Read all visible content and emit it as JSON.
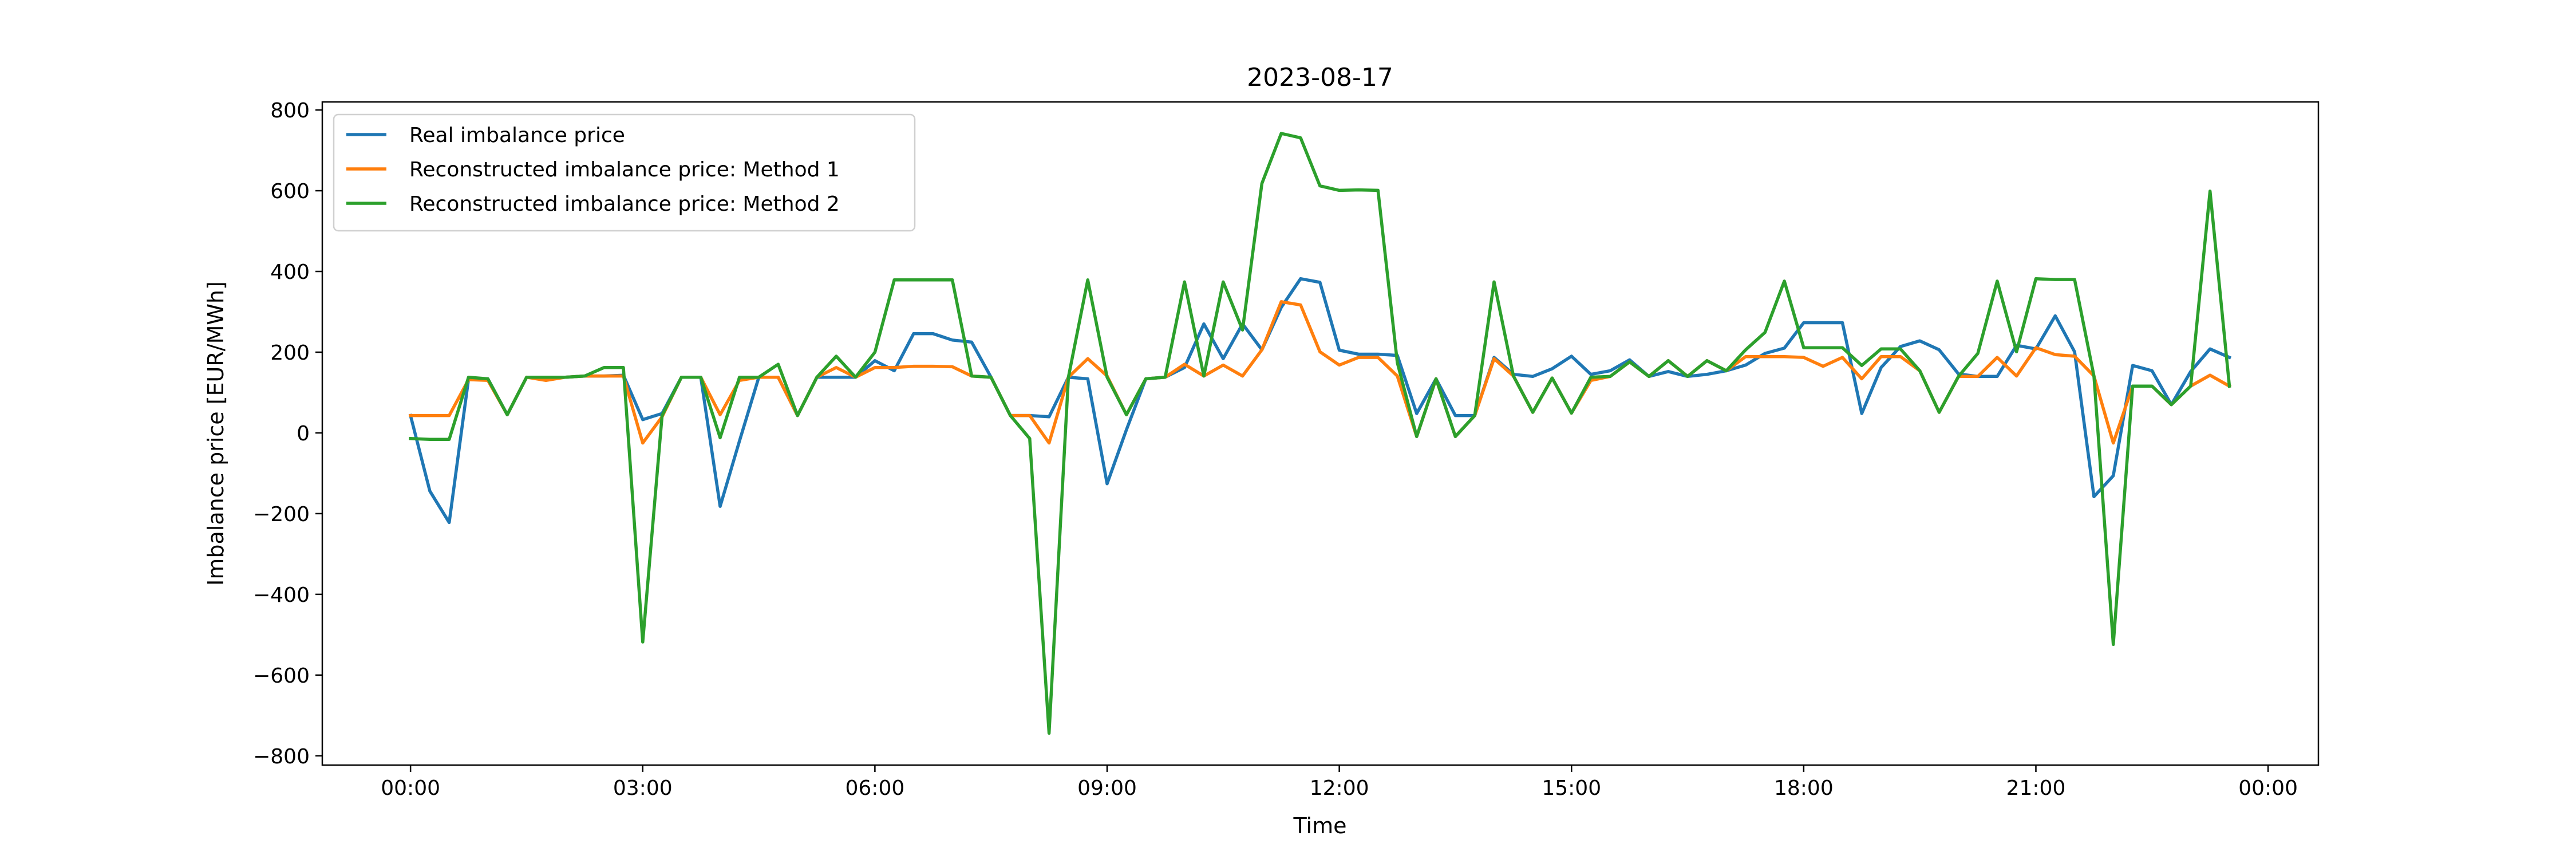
{
  "chart_data": {
    "type": "line",
    "title": "2023-08-17",
    "xlabel": "Time",
    "ylabel": "Imbalance price [EUR/MWh]",
    "x_unit": "hours since 00:00, 15-minute resolution",
    "x": [
      "00:00",
      "00:15",
      "00:30",
      "00:45",
      "01:00",
      "01:15",
      "01:30",
      "01:45",
      "02:00",
      "02:15",
      "02:30",
      "02:45",
      "03:00",
      "03:15",
      "03:30",
      "03:45",
      "04:00",
      "04:15",
      "04:30",
      "04:45",
      "05:00",
      "05:15",
      "05:30",
      "05:45",
      "06:00",
      "06:15",
      "06:30",
      "06:45",
      "07:00",
      "07:15",
      "07:30",
      "07:45",
      "08:00",
      "08:15",
      "08:30",
      "08:45",
      "09:00",
      "09:15",
      "09:30",
      "09:45",
      "10:00",
      "10:15",
      "10:30",
      "10:45",
      "11:00",
      "11:15",
      "11:30",
      "11:45",
      "12:00",
      "12:15",
      "12:30",
      "12:45",
      "13:00",
      "13:15",
      "13:30",
      "13:45",
      "14:00",
      "14:15",
      "14:30",
      "14:45",
      "15:00",
      "15:15",
      "15:30",
      "15:45",
      "16:00",
      "16:15",
      "16:30",
      "16:45",
      "17:00",
      "17:15",
      "17:30",
      "17:45",
      "18:00",
      "18:15",
      "18:30",
      "18:45",
      "19:00",
      "19:15",
      "19:30",
      "19:45",
      "20:00",
      "20:15",
      "20:30",
      "20:45",
      "21:00",
      "21:15",
      "21:30",
      "21:45",
      "22:00",
      "22:15",
      "22:30",
      "22:45",
      "23:00",
      "23:15",
      "23:30"
    ],
    "xlim": [
      -1.14,
      24.65
    ],
    "ylim": [
      -823,
      820
    ],
    "x_ticks": [
      {
        "hour": 0,
        "label": "00:00"
      },
      {
        "hour": 3,
        "label": "03:00"
      },
      {
        "hour": 6,
        "label": "06:00"
      },
      {
        "hour": 9,
        "label": "09:00"
      },
      {
        "hour": 12,
        "label": "12:00"
      },
      {
        "hour": 15,
        "label": "15:00"
      },
      {
        "hour": 18,
        "label": "18:00"
      },
      {
        "hour": 21,
        "label": "21:00"
      },
      {
        "hour": 24,
        "label": "00:00"
      }
    ],
    "y_ticks": [
      {
        "value": 800,
        "label": "800"
      },
      {
        "value": 600,
        "label": "600"
      },
      {
        "value": 400,
        "label": "400"
      },
      {
        "value": 200,
        "label": "200"
      },
      {
        "value": 0,
        "label": "0"
      },
      {
        "value": -200,
        "label": "−200"
      },
      {
        "value": -400,
        "label": "−400"
      },
      {
        "value": -600,
        "label": "−600"
      },
      {
        "value": -800,
        "label": "−800"
      }
    ],
    "grid": false,
    "legend_position": "top-left",
    "series": [
      {
        "name": "Real imbalance price",
        "color": "#1f77b4",
        "values": [
          43,
          -144,
          -222,
          134,
          134,
          45,
          138,
          138,
          138,
          141,
          141,
          143,
          33,
          48,
          138,
          138,
          -182,
          -20,
          138,
          138,
          43,
          138,
          138,
          138,
          179,
          154,
          246,
          246,
          230,
          225,
          138,
          43,
          43,
          40,
          138,
          134,
          -126,
          8,
          134,
          138,
          162,
          270,
          184,
          270,
          206,
          311,
          382,
          373,
          205,
          195,
          195,
          192,
          48,
          134,
          43,
          43,
          187,
          145,
          140,
          159,
          190,
          145,
          154,
          181,
          140,
          152,
          140,
          145,
          154,
          168,
          197,
          210,
          273,
          273,
          273,
          48,
          162,
          214,
          228,
          206,
          146,
          140,
          140,
          217,
          208,
          290,
          201,
          -158,
          -106,
          167,
          154,
          70,
          152,
          208,
          187
        ]
      },
      {
        "name": "Reconstructed imbalance price: Method 1",
        "color": "#ff7f0e",
        "values": [
          43,
          43,
          43,
          132,
          130,
          45,
          138,
          130,
          138,
          141,
          141,
          141,
          -25,
          40,
          138,
          138,
          45,
          130,
          138,
          138,
          43,
          138,
          162,
          138,
          162,
          162,
          165,
          165,
          164,
          141,
          138,
          43,
          43,
          -25,
          138,
          184,
          141,
          45,
          134,
          138,
          170,
          141,
          168,
          141,
          206,
          325,
          317,
          201,
          168,
          187,
          187,
          141,
          -9,
          134,
          -9,
          43,
          184,
          141,
          51,
          136,
          49,
          130,
          140,
          176,
          140,
          179,
          140,
          179,
          154,
          189,
          189,
          189,
          187,
          165,
          187,
          134,
          189,
          189,
          154,
          51,
          140,
          140,
          187,
          141,
          211,
          194,
          190,
          141,
          -25,
          116,
          116,
          70,
          116,
          143,
          116
        ]
      },
      {
        "name": "Reconstructed imbalance price: Method 2",
        "color": "#2ca02c",
        "values": [
          -14,
          -16,
          -16,
          138,
          134,
          45,
          138,
          138,
          138,
          141,
          162,
          162,
          -518,
          43,
          138,
          138,
          -12,
          138,
          138,
          170,
          43,
          138,
          190,
          138,
          200,
          379,
          379,
          379,
          379,
          141,
          138,
          43,
          -14,
          -744,
          138,
          379,
          138,
          45,
          134,
          138,
          374,
          141,
          374,
          255,
          618,
          742,
          731,
          612,
          601,
          602,
          601,
          174,
          -9,
          134,
          -9,
          43,
          374,
          141,
          51,
          136,
          49,
          138,
          140,
          176,
          140,
          179,
          140,
          179,
          154,
          206,
          249,
          376,
          211,
          211,
          211,
          167,
          208,
          208,
          154,
          51,
          140,
          197,
          376,
          201,
          382,
          380,
          380,
          141,
          -524,
          116,
          116,
          70,
          116,
          599,
          116
        ]
      }
    ]
  }
}
